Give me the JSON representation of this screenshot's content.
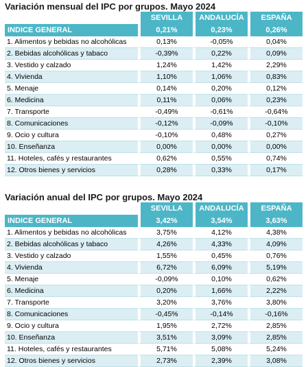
{
  "colors": {
    "header_bg": "#4cb6c7",
    "alt_row": "#dbeef3"
  },
  "columns": [
    "SEVILLA",
    "ANDALUCÍA",
    "ESPAÑA"
  ],
  "monthly": {
    "title": "Variación mensual del IPC por grupos. Mayo 2024",
    "general": {
      "label": "INDICE GENERAL",
      "values": [
        "0,21%",
        "0,23%",
        "0,26%"
      ]
    },
    "rows": [
      {
        "label": "1. Alimentos y bebidas no alcohólicas",
        "values": [
          "0,13%",
          "-0,05%",
          "0,04%"
        ]
      },
      {
        "label": "2. Bebidas alcohólicas y tabaco",
        "values": [
          "-0,39%",
          "0,22%",
          "0,09%"
        ]
      },
      {
        "label": "3. Vestido y calzado",
        "values": [
          "1,24%",
          "1,42%",
          "2,29%"
        ]
      },
      {
        "label": "4. Vivienda",
        "values": [
          "1,10%",
          "1,06%",
          "0,83%"
        ]
      },
      {
        "label": "5. Menaje",
        "values": [
          "0,14%",
          "0,20%",
          "0,12%"
        ]
      },
      {
        "label": "6. Medicina",
        "values": [
          "0,11%",
          "0,06%",
          "0,23%"
        ]
      },
      {
        "label": "7. Transporte",
        "values": [
          "-0,49%",
          "-0,61%",
          "-0,64%"
        ]
      },
      {
        "label": "8. Comunicaciones",
        "values": [
          "-0,12%",
          "-0,09%",
          "-0,10%"
        ]
      },
      {
        "label": "9. Ocio y cultura",
        "values": [
          "-0,10%",
          "0,48%",
          "0,27%"
        ]
      },
      {
        "label": "10. Enseñanza",
        "values": [
          "0,00%",
          "0,00%",
          "0,00%"
        ]
      },
      {
        "label": "11. Hoteles, cafés y restaurantes",
        "values": [
          "0,62%",
          "0,55%",
          "0,74%"
        ]
      },
      {
        "label": "12. Otros bienes y servicios",
        "values": [
          "0,28%",
          "0,33%",
          "0,17%"
        ]
      }
    ]
  },
  "annual": {
    "title": "Variación anual del IPC por grupos. Mayo 2024",
    "general": {
      "label": "INDICE GENERAL",
      "values": [
        "3,42%",
        "3,54%",
        "3,63%"
      ]
    },
    "rows": [
      {
        "label": "1. Alimentos y bebidas no alcohólicas",
        "values": [
          "3,75%",
          "4,12%",
          "4,38%"
        ]
      },
      {
        "label": "2. Bebidas alcohólicas y tabaco",
        "values": [
          "4,26%",
          "4,33%",
          "4,09%"
        ]
      },
      {
        "label": "3. Vestido y calzado",
        "values": [
          "1,55%",
          "0,45%",
          "0,76%"
        ]
      },
      {
        "label": "4. Vivienda",
        "values": [
          "6,72%",
          "6,09%",
          "5,19%"
        ]
      },
      {
        "label": "5. Menaje",
        "values": [
          "-0,09%",
          "0,10%",
          "0,62%"
        ]
      },
      {
        "label": "6. Medicina",
        "values": [
          "0,20%",
          "1,66%",
          "2,22%"
        ]
      },
      {
        "label": "7. Transporte",
        "values": [
          "3,20%",
          "3,76%",
          "3,80%"
        ]
      },
      {
        "label": "8. Comunicaciones",
        "values": [
          "-0,45%",
          "-0,14%",
          "-0,16%"
        ]
      },
      {
        "label": "9. Ocio y cultura",
        "values": [
          "1,95%",
          "2,72%",
          "2,85%"
        ]
      },
      {
        "label": "10. Enseñanza",
        "values": [
          "3,51%",
          "3,09%",
          "2,85%"
        ]
      },
      {
        "label": "11. Hoteles, cafés y restaurantes",
        "values": [
          "5,71%",
          "5,08%",
          "5,24%"
        ]
      },
      {
        "label": "12. Otros bienes y servicios",
        "values": [
          "2,73%",
          "2,39%",
          "3,08%"
        ]
      }
    ]
  }
}
